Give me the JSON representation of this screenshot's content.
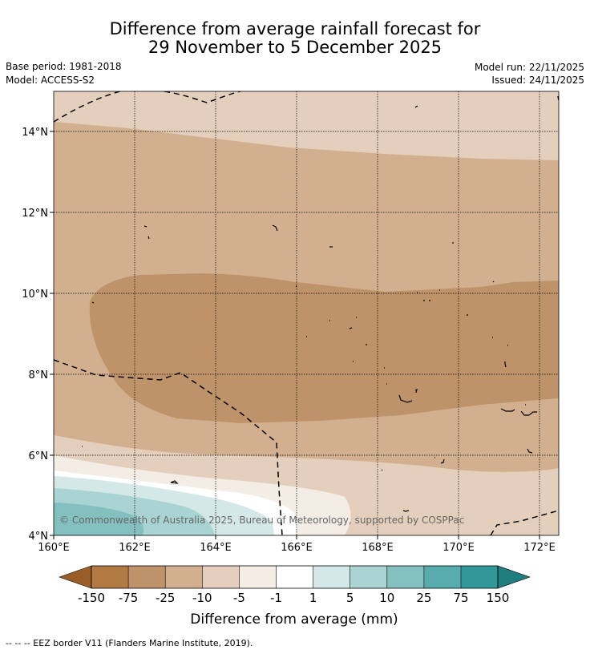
{
  "title": {
    "line1": "Difference from average rainfall forecast for",
    "line2": "29 November to 5 December 2025"
  },
  "meta": {
    "base_period": "Base period: 1981-2018",
    "model": "Model: ACCESS-S2",
    "model_run": "Model run: 22/11/2025",
    "issued": "Issued: 24/11/2025"
  },
  "map": {
    "lat_labels": [
      "14°N",
      "12°N",
      "10°N",
      "8°N",
      "6°N",
      "4°N"
    ],
    "lon_labels": [
      "160°E",
      "162°E",
      "164°E",
      "166°E",
      "168°E",
      "170°E",
      "172°E"
    ],
    "copyright": "© Commonwealth of Australia 2025, Bureau of Meteorology, supported by COSPPac"
  },
  "colorbar": {
    "title": "Difference from average (mm)",
    "tick_labels": [
      "-150",
      "-75",
      "-25",
      "-10",
      "-5",
      "-1",
      "1",
      "5",
      "10",
      "25",
      "75",
      "150"
    ],
    "colors": {
      "lt150": "#9a5d2a",
      "n150_75": "#b07a42",
      "n75_25": "#bf9369",
      "n25_10": "#d2b08f",
      "n10_5": "#e4cfbd",
      "n5_1": "#f3ede6",
      "n1_p1": "#ffffff",
      "p1_5": "#d4e9e7",
      "p5_10": "#a9d4d3",
      "p10_25": "#84c0c0",
      "p25_75": "#58acae",
      "p75_150": "#319897",
      "gt150": "#217e80"
    }
  },
  "footer": {
    "eez_note": "--  --  -- EEZ border V11 (Flanders Marine Institute, 2019)."
  }
}
